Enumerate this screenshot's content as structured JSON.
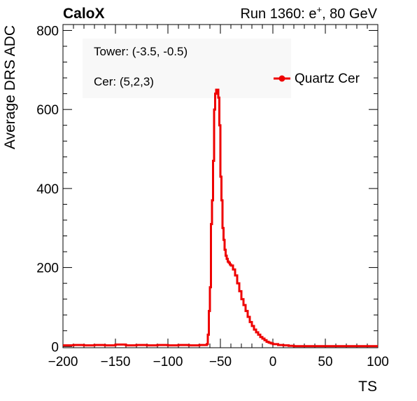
{
  "header": {
    "left": "CaloX",
    "right_prefix": "Run 1360: e",
    "right_sup": "+",
    "right_suffix": ", 80 GeV"
  },
  "annotations": {
    "tower": "Tower: (-3.5, -0.5)",
    "cer": "Cer: (5,2,3)"
  },
  "colors": {
    "series": "#ee0000",
    "axis": "#000000",
    "label_box": "#f8f8f8"
  },
  "chart_data": {
    "type": "line",
    "xlabel": "TS",
    "ylabel": "Average DRS ADC",
    "xlim": [
      -200,
      100
    ],
    "ylim": [
      -3,
      815
    ],
    "xticks": [
      -200,
      -150,
      -100,
      -50,
      0,
      50,
      100
    ],
    "xtick_labels": [
      "−200",
      "−150",
      "−100",
      "−50",
      "0",
      "50",
      "100"
    ],
    "yticks": [
      0,
      200,
      400,
      600,
      800
    ],
    "ytick_labels": [
      "0",
      "200",
      "400",
      "600",
      "800"
    ],
    "grid": false,
    "legend_position": "top-right",
    "series": [
      {
        "name": "Quartz Cer",
        "color": "#ee0000",
        "x": [
          -200,
          -190,
          -180,
          -170,
          -160,
          -150,
          -140,
          -130,
          -120,
          -110,
          -100,
          -90,
          -80,
          -70,
          -65,
          -63,
          -62,
          -61,
          -60,
          -59,
          -58,
          -57,
          -56,
          -55,
          -54,
          -53,
          -52,
          -51,
          -50,
          -49,
          -48,
          -47,
          -46,
          -45,
          -44,
          -43,
          -42,
          -41,
          -40,
          -38,
          -36,
          -34,
          -32,
          -30,
          -28,
          -26,
          -24,
          -22,
          -20,
          -18,
          -16,
          -14,
          -12,
          -10,
          -8,
          -6,
          -4,
          -2,
          0,
          5,
          10,
          15,
          20,
          30,
          40,
          50,
          60,
          70,
          80,
          90,
          100
        ],
        "y": [
          3,
          4,
          3,
          4,
          3,
          5,
          3,
          4,
          3,
          4,
          3,
          4,
          3,
          4,
          4,
          6,
          30,
          90,
          150,
          310,
          370,
          470,
          600,
          640,
          650,
          650,
          630,
          560,
          430,
          370,
          300,
          270,
          245,
          230,
          222,
          215,
          212,
          208,
          205,
          195,
          180,
          160,
          140,
          120,
          105,
          90,
          75,
          62,
          52,
          43,
          36,
          30,
          24,
          20,
          16,
          12,
          10,
          8,
          6,
          4,
          3,
          2,
          1,
          1,
          1,
          1,
          1,
          1,
          1,
          1,
          1
        ]
      }
    ]
  }
}
